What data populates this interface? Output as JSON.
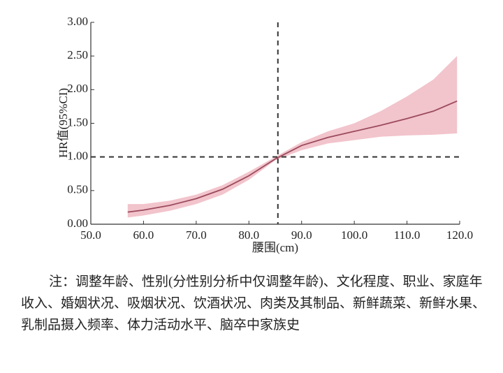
{
  "chart_data": {
    "type": "band_line",
    "xlabel": "腰围(cm)",
    "ylabel": "HR值(95%CI)",
    "x": [
      57,
      60,
      65,
      70,
      75,
      80,
      85,
      90,
      95,
      100,
      105,
      110,
      115,
      119.5
    ],
    "values": [
      0.18,
      0.21,
      0.28,
      0.38,
      0.52,
      0.72,
      0.97,
      1.17,
      1.29,
      1.38,
      1.47,
      1.57,
      1.68,
      1.83
    ],
    "lower": [
      0.1,
      0.13,
      0.2,
      0.3,
      0.44,
      0.66,
      0.95,
      1.1,
      1.2,
      1.25,
      1.3,
      1.32,
      1.33,
      1.35
    ],
    "upper": [
      0.3,
      0.3,
      0.35,
      0.44,
      0.58,
      0.78,
      1.0,
      1.22,
      1.38,
      1.5,
      1.68,
      1.9,
      2.15,
      2.5
    ],
    "color": "#9b4a5c",
    "band_color": "#f2c4cc",
    "vline": 85.5,
    "hline": 1,
    "xlim": [
      50,
      120
    ],
    "xticks": [
      {
        "value": 50,
        "label": "50.0"
      },
      {
        "value": 60,
        "label": "60.0"
      },
      {
        "value": 70,
        "label": "70.0"
      },
      {
        "value": 80,
        "label": "80.0"
      },
      {
        "value": 90,
        "label": "90.0"
      },
      {
        "value": 100,
        "label": "100.0"
      },
      {
        "value": 110,
        "label": "110.0"
      },
      {
        "value": 120,
        "label": "120.0"
      }
    ],
    "ylim": [
      0,
      3
    ],
    "yticks": [
      {
        "value": 0,
        "label": "0.00"
      },
      {
        "value": 0.5,
        "label": "0.50"
      },
      {
        "value": 1,
        "label": "1.00"
      },
      {
        "value": 1.5,
        "label": "1.50"
      },
      {
        "value": 2,
        "label": "2.00"
      },
      {
        "value": 2.5,
        "label": "2.50"
      },
      {
        "value": 3,
        "label": "3.00"
      }
    ]
  },
  "note": "注：调整年龄、性别(分性别分析中仅调整年龄)、文化程度、职业、家庭年收入、婚姻状况、吸烟状况、饮酒状况、肉类及其制品、新鲜蔬菜、新鲜水果、乳制品摄入频率、体力活动水平、脑卒中家族史"
}
